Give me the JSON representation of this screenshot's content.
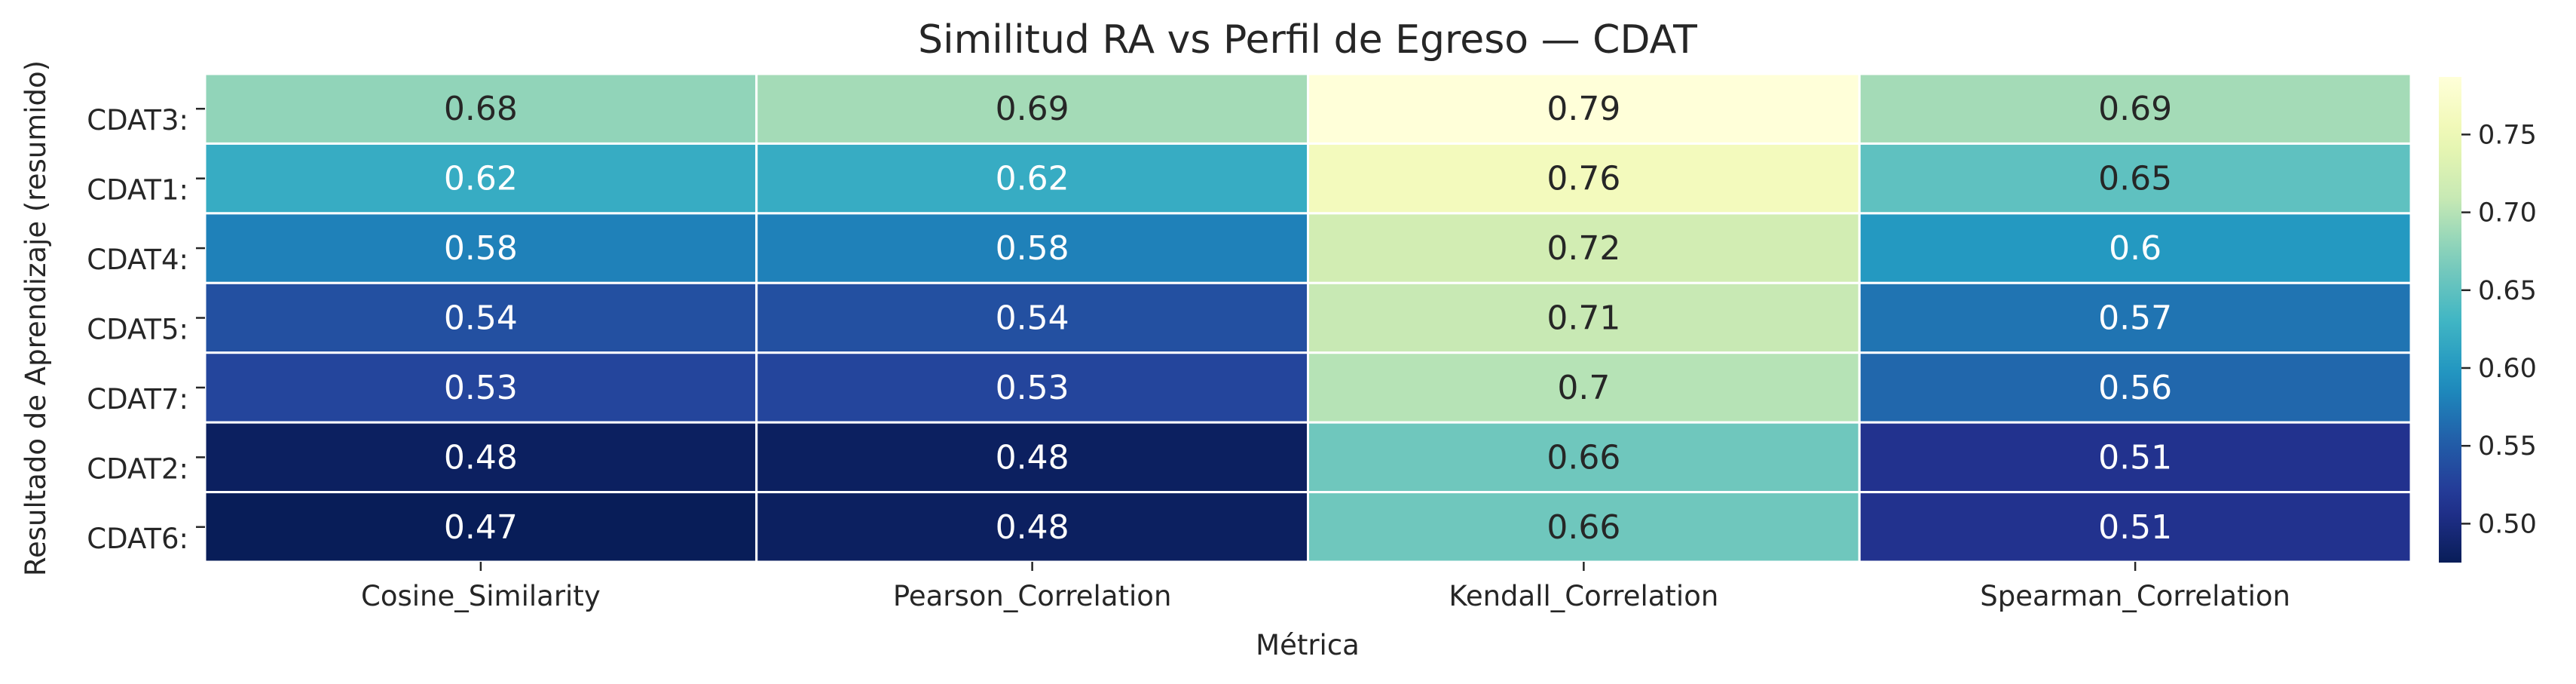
{
  "chart_data": {
    "type": "heatmap",
    "title": "Similitud RA vs Perfil de Egreso — CDAT",
    "xlabel": "Métrica",
    "ylabel": "Resultado de Aprendizaje (resumido)",
    "columns": [
      "Cosine_Similarity",
      "Pearson_Correlation",
      "Kendall_Correlation",
      "Spearman_Correlation"
    ],
    "rows": [
      "CDAT3:",
      "CDAT1:",
      "CDAT4:",
      "CDAT5:",
      "CDAT7:",
      "CDAT2:",
      "CDAT6:"
    ],
    "values": [
      [
        0.68,
        0.69,
        0.79,
        0.69
      ],
      [
        0.62,
        0.62,
        0.76,
        0.65
      ],
      [
        0.58,
        0.58,
        0.72,
        0.6
      ],
      [
        0.54,
        0.54,
        0.71,
        0.57
      ],
      [
        0.53,
        0.53,
        0.7,
        0.56
      ],
      [
        0.48,
        0.48,
        0.66,
        0.51
      ],
      [
        0.47,
        0.48,
        0.66,
        0.51
      ]
    ],
    "cell_labels": [
      [
        "0.68",
        "0.69",
        "0.79",
        "0.69"
      ],
      [
        "0.62",
        "0.62",
        "0.76",
        "0.65"
      ],
      [
        "0.58",
        "0.58",
        "0.72",
        "0.6"
      ],
      [
        "0.54",
        "0.54",
        "0.71",
        "0.57"
      ],
      [
        "0.53",
        "0.53",
        "0.7",
        "0.56"
      ],
      [
        "0.48",
        "0.48",
        "0.66",
        "0.51"
      ],
      [
        "0.47",
        "0.48",
        "0.66",
        "0.51"
      ]
    ],
    "colormap": "YlGnBu",
    "vmin": 0.475,
    "vmax": 0.787,
    "colorbar_ticks": [
      0.5,
      0.55,
      0.6,
      0.65,
      0.7,
      0.75
    ],
    "colorbar_tick_labels": [
      "0.50",
      "0.55",
      "0.60",
      "0.65",
      "0.70",
      "0.75"
    ],
    "grid": true,
    "grid_color": "#ffffff",
    "legend": "colorbar-right"
  }
}
